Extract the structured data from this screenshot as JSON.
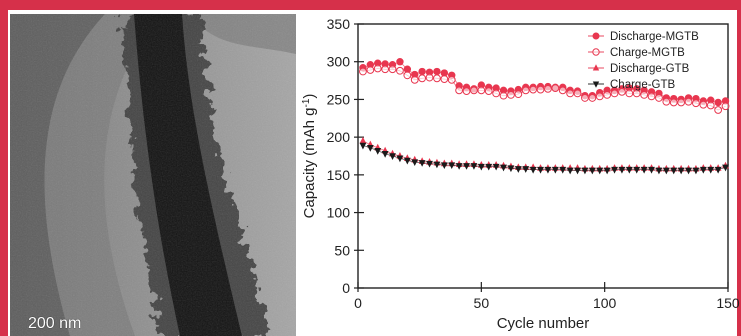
{
  "image_panel": {
    "scale_label": "200 nm"
  },
  "chart_data": {
    "type": "scatter",
    "xlabel": "Cycle number",
    "ylabel": "Capacity (mAh g",
    "ylabel_sup": "-1",
    "ylabel_close": ")",
    "xlim": [
      0,
      150
    ],
    "ylim": [
      0,
      350
    ],
    "x_ticks": [
      0,
      50,
      100,
      150
    ],
    "y_ticks": [
      0,
      50,
      100,
      150,
      200,
      250,
      300,
      350
    ],
    "legend_position": "top-right",
    "colors": {
      "red": "#e8364f",
      "black": "#1a1a1a"
    },
    "series": [
      {
        "name": "Discharge-MGTB",
        "marker": "circle-filled",
        "color": "#e8364f",
        "points": [
          [
            2,
            292
          ],
          [
            5,
            296
          ],
          [
            8,
            298
          ],
          [
            11,
            297
          ],
          [
            14,
            296
          ],
          [
            17,
            300
          ],
          [
            20,
            290
          ],
          [
            23,
            283
          ],
          [
            26,
            287
          ],
          [
            29,
            286
          ],
          [
            32,
            287
          ],
          [
            35,
            285
          ],
          [
            38,
            282
          ],
          [
            41,
            268
          ],
          [
            44,
            266
          ],
          [
            47,
            264
          ],
          [
            50,
            269
          ],
          [
            53,
            266
          ],
          [
            56,
            265
          ],
          [
            59,
            262
          ],
          [
            62,
            261
          ],
          [
            65,
            263
          ],
          [
            68,
            266
          ],
          [
            71,
            266
          ],
          [
            74,
            267
          ],
          [
            77,
            267
          ],
          [
            80,
            266
          ],
          [
            83,
            266
          ],
          [
            86,
            262
          ],
          [
            89,
            261
          ],
          [
            92,
            255
          ],
          [
            95,
            255
          ],
          [
            98,
            259
          ],
          [
            101,
            262
          ],
          [
            104,
            262
          ],
          [
            107,
            264
          ],
          [
            110,
            265
          ],
          [
            113,
            264
          ],
          [
            116,
            262
          ],
          [
            119,
            260
          ],
          [
            122,
            258
          ],
          [
            125,
            252
          ],
          [
            128,
            251
          ],
          [
            131,
            250
          ],
          [
            134,
            252
          ],
          [
            137,
            251
          ],
          [
            140,
            248
          ],
          [
            143,
            249
          ],
          [
            146,
            246
          ],
          [
            149,
            248
          ]
        ]
      },
      {
        "name": "Charge-MGTB",
        "marker": "circle-open",
        "color": "#e8364f",
        "points": [
          [
            2,
            287
          ],
          [
            5,
            289
          ],
          [
            8,
            291
          ],
          [
            11,
            290
          ],
          [
            14,
            290
          ],
          [
            17,
            288
          ],
          [
            20,
            282
          ],
          [
            23,
            276
          ],
          [
            26,
            278
          ],
          [
            29,
            279
          ],
          [
            32,
            278
          ],
          [
            35,
            277
          ],
          [
            38,
            276
          ],
          [
            41,
            262
          ],
          [
            44,
            261
          ],
          [
            47,
            262
          ],
          [
            50,
            262
          ],
          [
            53,
            261
          ],
          [
            56,
            258
          ],
          [
            59,
            255
          ],
          [
            62,
            256
          ],
          [
            65,
            257
          ],
          [
            68,
            262
          ],
          [
            71,
            263
          ],
          [
            74,
            263
          ],
          [
            77,
            264
          ],
          [
            80,
            265
          ],
          [
            83,
            262
          ],
          [
            86,
            258
          ],
          [
            89,
            258
          ],
          [
            92,
            252
          ],
          [
            95,
            252
          ],
          [
            98,
            254
          ],
          [
            101,
            256
          ],
          [
            104,
            258
          ],
          [
            107,
            260
          ],
          [
            110,
            258
          ],
          [
            113,
            258
          ],
          [
            116,
            256
          ],
          [
            119,
            254
          ],
          [
            122,
            252
          ],
          [
            125,
            247
          ],
          [
            128,
            246
          ],
          [
            131,
            246
          ],
          [
            134,
            247
          ],
          [
            137,
            245
          ],
          [
            140,
            243
          ],
          [
            143,
            242
          ],
          [
            146,
            236
          ],
          [
            149,
            241
          ]
        ]
      },
      {
        "name": "Discharge-GTB",
        "marker": "triangle-up-filled",
        "color": "#e8364f",
        "points": [
          [
            2,
            195
          ],
          [
            5,
            190
          ],
          [
            8,
            186
          ],
          [
            11,
            182
          ],
          [
            14,
            178
          ],
          [
            17,
            175
          ],
          [
            20,
            172
          ],
          [
            23,
            170
          ],
          [
            26,
            168
          ],
          [
            29,
            167
          ],
          [
            32,
            166
          ],
          [
            35,
            165
          ],
          [
            38,
            165
          ],
          [
            41,
            164
          ],
          [
            44,
            164
          ],
          [
            47,
            164
          ],
          [
            50,
            163
          ],
          [
            53,
            163
          ],
          [
            56,
            163
          ],
          [
            59,
            162
          ],
          [
            62,
            161
          ],
          [
            65,
            160
          ],
          [
            68,
            160
          ],
          [
            71,
            160
          ],
          [
            74,
            159
          ],
          [
            77,
            159
          ],
          [
            80,
            159
          ],
          [
            83,
            159
          ],
          [
            86,
            159
          ],
          [
            89,
            159
          ],
          [
            92,
            158
          ],
          [
            95,
            158
          ],
          [
            98,
            158
          ],
          [
            101,
            158
          ],
          [
            104,
            159
          ],
          [
            107,
            159
          ],
          [
            110,
            159
          ],
          [
            113,
            159
          ],
          [
            116,
            159
          ],
          [
            119,
            159
          ],
          [
            122,
            158
          ],
          [
            125,
            158
          ],
          [
            128,
            158
          ],
          [
            131,
            158
          ],
          [
            134,
            158
          ],
          [
            137,
            158
          ],
          [
            140,
            159
          ],
          [
            143,
            159
          ],
          [
            146,
            159
          ],
          [
            149,
            162
          ]
        ]
      },
      {
        "name": "Charge-GTB",
        "marker": "triangle-down-filled",
        "color": "#1a1a1a",
        "points": [
          [
            2,
            189
          ],
          [
            5,
            186
          ],
          [
            8,
            182
          ],
          [
            11,
            178
          ],
          [
            14,
            175
          ],
          [
            17,
            172
          ],
          [
            20,
            169
          ],
          [
            23,
            167
          ],
          [
            26,
            166
          ],
          [
            29,
            165
          ],
          [
            32,
            164
          ],
          [
            35,
            163
          ],
          [
            38,
            163
          ],
          [
            41,
            162
          ],
          [
            44,
            162
          ],
          [
            47,
            162
          ],
          [
            50,
            161
          ],
          [
            53,
            161
          ],
          [
            56,
            161
          ],
          [
            59,
            160
          ],
          [
            62,
            159
          ],
          [
            65,
            158
          ],
          [
            68,
            158
          ],
          [
            71,
            157
          ],
          [
            74,
            157
          ],
          [
            77,
            157
          ],
          [
            80,
            157
          ],
          [
            83,
            157
          ],
          [
            86,
            156
          ],
          [
            89,
            156
          ],
          [
            92,
            156
          ],
          [
            95,
            156
          ],
          [
            98,
            156
          ],
          [
            101,
            156
          ],
          [
            104,
            157
          ],
          [
            107,
            157
          ],
          [
            110,
            157
          ],
          [
            113,
            157
          ],
          [
            116,
            157
          ],
          [
            119,
            157
          ],
          [
            122,
            156
          ],
          [
            125,
            156
          ],
          [
            128,
            156
          ],
          [
            131,
            156
          ],
          [
            134,
            156
          ],
          [
            137,
            156
          ],
          [
            140,
            157
          ],
          [
            143,
            157
          ],
          [
            146,
            157
          ],
          [
            149,
            160
          ]
        ]
      }
    ]
  }
}
